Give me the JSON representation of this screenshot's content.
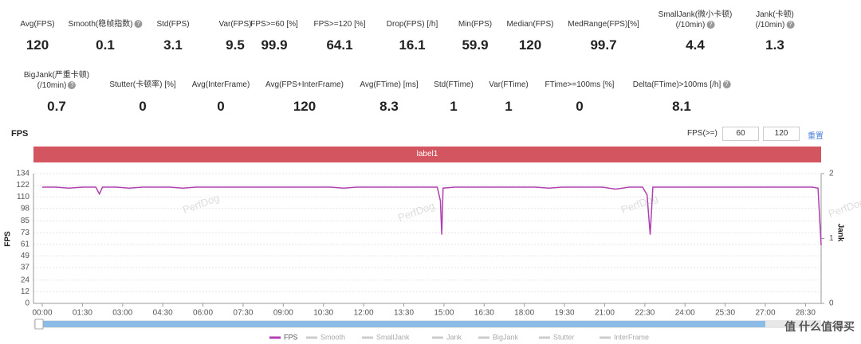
{
  "stats": {
    "row1": [
      {
        "label": "Avg(FPS)",
        "value": 120
      },
      {
        "label": "Smooth(稳帧指数)",
        "value": 0.1
      },
      {
        "label": "Std(FPS)",
        "value": 3.1
      },
      {
        "label": "Var(FPS)",
        "value": 9.5
      },
      {
        "label": "FPS>=60 [%]",
        "value": 99.9
      },
      {
        "label": "FPS>=120 [%]",
        "value": 64.1
      },
      {
        "label": "Drop(FPS) [/h]",
        "value": 16.1
      },
      {
        "label": "Min(FPS)",
        "value": 59.9
      },
      {
        "label": "Median(FPS)",
        "value": 120
      },
      {
        "label": "MedRange(FPS)[%]",
        "value": 99.7
      },
      {
        "label": "SmallJank(微小卡顿)\n(/10min)",
        "value": 4.4
      },
      {
        "label": "Jank(卡顿)\n(/10min)",
        "value": 1.3
      }
    ],
    "row2": [
      {
        "label": "BigJank(严重卡顿)\n(/10min)",
        "value": 0.7
      },
      {
        "label": "Stutter(卡顿率) [%]",
        "value": 0
      },
      {
        "label": "Avg(InterFrame)",
        "value": 0
      },
      {
        "label": "Avg(FPS+InterFrame)",
        "value": 120
      },
      {
        "label": "Avg(FTime) [ms]",
        "value": 8.3
      },
      {
        "label": "Std(FTime)",
        "value": 1
      },
      {
        "label": "Var(FTime)",
        "value": 1
      },
      {
        "label": "FTime>=100ms [%]",
        "value": 0
      },
      {
        "label": "Delta(FTime)>100ms [/h]",
        "value": 8.1
      }
    ]
  },
  "controls": {
    "section": "FPS",
    "filter_label": "FPS(>=)",
    "filter_values": [
      60,
      120
    ],
    "reset": "重置",
    "band_label": "label1"
  },
  "watermark": "PerfDog",
  "logo": "值 什么值得买",
  "chart_data": {
    "type": "line",
    "ylabel": "FPS",
    "y2label": "Jank",
    "x": [
      0,
      30,
      60,
      90,
      120,
      128,
      135,
      165,
      195,
      225,
      255,
      285,
      315,
      345,
      375,
      405,
      435,
      465,
      495,
      525,
      555,
      585,
      615,
      645,
      675,
      705,
      735,
      765,
      795,
      825,
      855,
      885,
      892,
      895,
      898,
      925,
      955,
      985,
      1015,
      1045,
      1075,
      1105,
      1135,
      1165,
      1195,
      1225,
      1255,
      1285,
      1315,
      1345,
      1355,
      1362,
      1368,
      1395,
      1425,
      1455,
      1485,
      1515,
      1545,
      1575,
      1605,
      1635,
      1665,
      1695,
      1725,
      1738,
      1745
    ],
    "series": [
      {
        "name": "FPS",
        "color": "#b040b0",
        "values": [
          120,
          120,
          119,
          120,
          120,
          113,
          120,
          120,
          119,
          120,
          120,
          120,
          119,
          120,
          120,
          120,
          120,
          120,
          120,
          120,
          120,
          120,
          120,
          120,
          119,
          120,
          120,
          120,
          120,
          120,
          120,
          120,
          106,
          71,
          119,
          120,
          120,
          120,
          120,
          120,
          120,
          120,
          119,
          120,
          120,
          120,
          120,
          118,
          120,
          120,
          112,
          71,
          120,
          120,
          120,
          120,
          120,
          120,
          120,
          120,
          120,
          120,
          120,
          120,
          120,
          119,
          60
        ]
      }
    ],
    "legend_inactive": [
      "Smooth",
      "SmallJank",
      "Jank",
      "BigJank",
      "Stutter",
      "InterFrame"
    ],
    "xlim": [
      0,
      1745
    ],
    "xticks": [
      {
        "value": 0,
        "label": "00:00"
      },
      {
        "value": 90,
        "label": "01:30"
      },
      {
        "value": 180,
        "label": "03:00"
      },
      {
        "value": 270,
        "label": "04:30"
      },
      {
        "value": 360,
        "label": "06:00"
      },
      {
        "value": 450,
        "label": "07:30"
      },
      {
        "value": 540,
        "label": "09:00"
      },
      {
        "value": 630,
        "label": "10:30"
      },
      {
        "value": 720,
        "label": "12:00"
      },
      {
        "value": 810,
        "label": "13:30"
      },
      {
        "value": 900,
        "label": "15:00"
      },
      {
        "value": 990,
        "label": "16:30"
      },
      {
        "value": 1080,
        "label": "18:00"
      },
      {
        "value": 1170,
        "label": "19:30"
      },
      {
        "value": 1260,
        "label": "21:00"
      },
      {
        "value": 1350,
        "label": "22:30"
      },
      {
        "value": 1440,
        "label": "24:00"
      },
      {
        "value": 1530,
        "label": "25:30"
      },
      {
        "value": 1620,
        "label": "27:00"
      },
      {
        "value": 1710,
        "label": "28:30"
      }
    ],
    "ylim": [
      0,
      134
    ],
    "yticks": [
      0,
      12,
      24,
      37,
      49,
      61,
      73,
      85,
      98,
      110,
      122,
      134
    ],
    "y2lim": [
      0,
      2
    ],
    "y2ticks": [
      0,
      1,
      2
    ],
    "grid": true
  }
}
